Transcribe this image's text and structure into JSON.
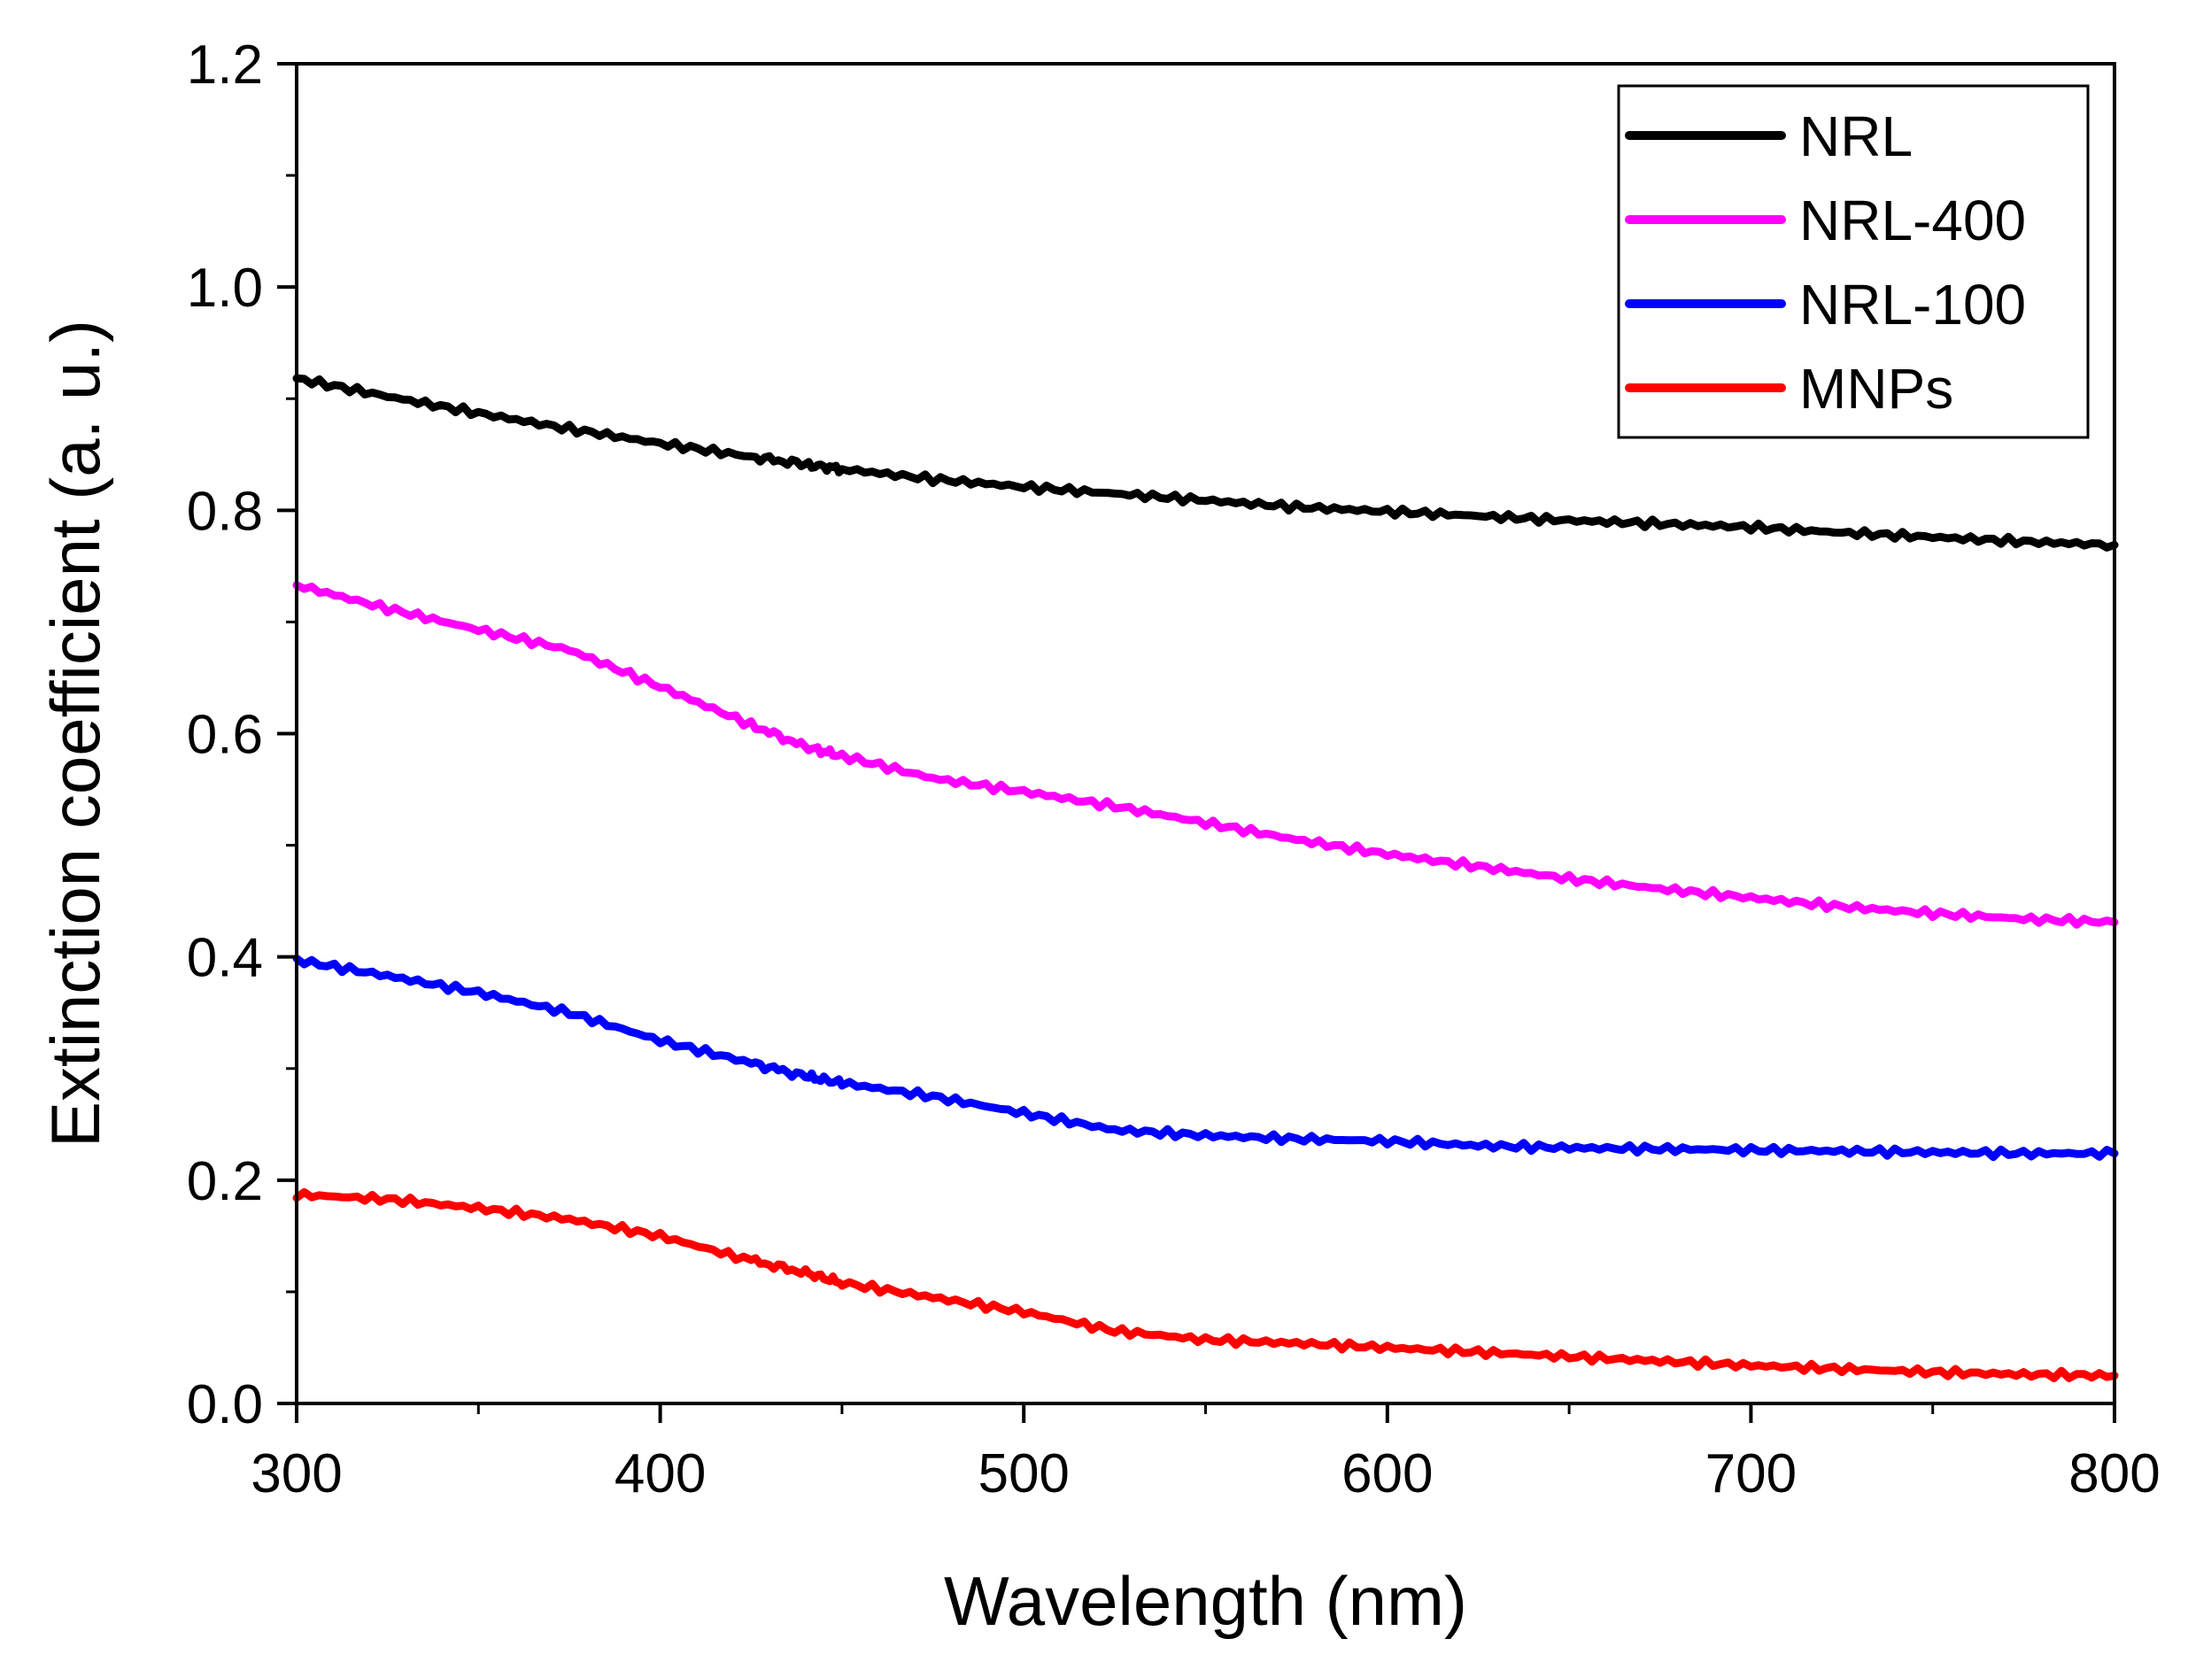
{
  "chart_data": {
    "type": "line",
    "title": "",
    "xlabel": "Wavelength (nm)",
    "ylabel": "Extinction coefficient (a. u.)",
    "xlim": [
      300,
      800
    ],
    "ylim": [
      0.0,
      1.2
    ],
    "xticks": [
      "300",
      "400",
      "500",
      "600",
      "700",
      "800"
    ],
    "xtick_values": [
      300,
      400,
      500,
      600,
      700,
      800
    ],
    "yticks": [
      "0.0",
      "0.2",
      "0.4",
      "0.6",
      "0.8",
      "1.0",
      "1.2"
    ],
    "ytick_values": [
      0.0,
      0.2,
      0.4,
      0.6,
      0.8,
      1.0,
      1.2
    ],
    "legend_position": "top-right",
    "x": [
      300,
      325,
      350,
      375,
      400,
      425,
      440,
      450,
      475,
      500,
      525,
      550,
      575,
      600,
      625,
      650,
      675,
      700,
      725,
      750,
      775,
      800
    ],
    "series": [
      {
        "name": "NRL",
        "color": "#000000",
        "values": [
          0.918,
          0.902,
          0.887,
          0.873,
          0.86,
          0.848,
          0.841,
          0.837,
          0.828,
          0.821,
          0.815,
          0.809,
          0.803,
          0.799,
          0.795,
          0.791,
          0.788,
          0.785,
          0.78,
          0.776,
          0.772,
          0.769
        ]
      },
      {
        "name": "NRL-400",
        "color": "#ff00ff",
        "values": [
          0.733,
          0.712,
          0.693,
          0.675,
          0.642,
          0.608,
          0.588,
          0.58,
          0.56,
          0.548,
          0.535,
          0.52,
          0.505,
          0.492,
          0.481,
          0.47,
          0.461,
          0.453,
          0.445,
          0.439,
          0.434,
          0.431
        ]
      },
      {
        "name": "NRL-100",
        "color": "#0000ff",
        "values": [
          0.397,
          0.383,
          0.368,
          0.35,
          0.325,
          0.305,
          0.293,
          0.287,
          0.275,
          0.26,
          0.245,
          0.24,
          0.237,
          0.235,
          0.231,
          0.229,
          0.228,
          0.227,
          0.226,
          0.225,
          0.224,
          0.224
        ]
      },
      {
        "name": "MNPs",
        "color": "#ff0000",
        "values": [
          0.187,
          0.183,
          0.175,
          0.165,
          0.15,
          0.128,
          0.117,
          0.108,
          0.095,
          0.082,
          0.065,
          0.057,
          0.054,
          0.05,
          0.046,
          0.042,
          0.038,
          0.034,
          0.031,
          0.028,
          0.026,
          0.025
        ]
      }
    ]
  }
}
